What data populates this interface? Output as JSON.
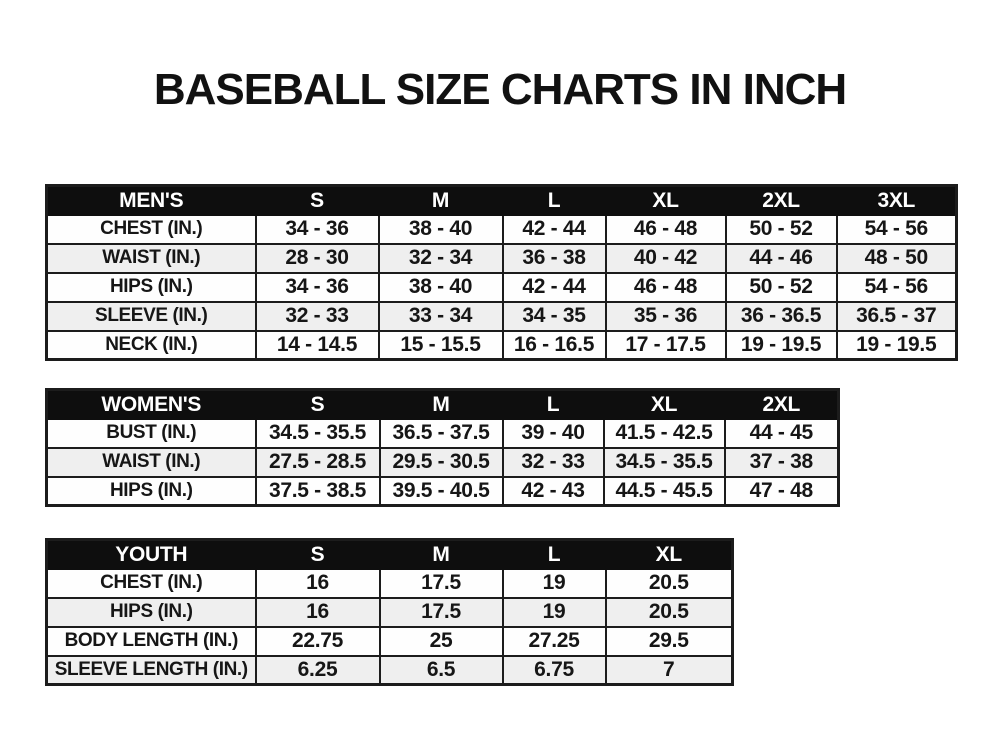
{
  "page": {
    "title": "BASEBALL SIZE CHARTS IN INCH"
  },
  "colors": {
    "header_bg": "#0e0e0e",
    "header_text": "#ffffff",
    "row_stripe": "#efefef",
    "row_white": "#fefefe",
    "border": "#1c1c1c",
    "text": "#161616"
  },
  "tables": [
    {
      "id": "mens",
      "title": "MEN'S",
      "columns": [
        "MEN'S",
        "S",
        "M",
        "L",
        "XL",
        "2XL",
        "3XL"
      ],
      "rows": [
        [
          "CHEST (IN.)",
          "34 - 36",
          "38 - 40",
          "42 - 44",
          "46 - 48",
          "50 - 52",
          "54 - 56"
        ],
        [
          "WAIST (IN.)",
          "28 - 30",
          "32 - 34",
          "36 - 38",
          "40 - 42",
          "44 - 46",
          "48 - 50"
        ],
        [
          "HIPS (IN.)",
          "34 - 36",
          "38 - 40",
          "42 - 44",
          "46 - 48",
          "50 - 52",
          "54 - 56"
        ],
        [
          "SLEEVE (IN.)",
          "32 - 33",
          "33 - 34",
          "34 - 35",
          "35 - 36",
          "36 - 36.5",
          "36.5 - 37"
        ],
        [
          "NECK (IN.)",
          "14 - 14.5",
          "15 - 15.5",
          "16 - 16.5",
          "17 - 17.5",
          "19 - 19.5",
          "19 - 19.5"
        ]
      ]
    },
    {
      "id": "womens",
      "title": "WOMEN'S",
      "columns": [
        "WOMEN'S",
        "S",
        "M",
        "L",
        "XL",
        "2XL"
      ],
      "rows": [
        [
          "BUST (IN.)",
          "34.5 - 35.5",
          "36.5 - 37.5",
          "39 - 40",
          "41.5 - 42.5",
          "44 - 45"
        ],
        [
          "WAIST (IN.)",
          "27.5 - 28.5",
          "29.5 - 30.5",
          "32 - 33",
          "34.5 - 35.5",
          "37 - 38"
        ],
        [
          "HIPS (IN.)",
          "37.5 - 38.5",
          "39.5 - 40.5",
          "42 - 43",
          "44.5 - 45.5",
          "47 - 48"
        ]
      ]
    },
    {
      "id": "youth",
      "title": "YOUTH",
      "columns": [
        "YOUTH",
        "S",
        "M",
        "L",
        "XL"
      ],
      "rows": [
        [
          "CHEST (IN.)",
          "16",
          "17.5",
          "19",
          "20.5"
        ],
        [
          "HIPS (IN.)",
          "16",
          "17.5",
          "19",
          "20.5"
        ],
        [
          "BODY LENGTH (IN.)",
          "22.75",
          "25",
          "27.25",
          "29.5"
        ],
        [
          "SLEEVE LENGTH (IN.)",
          "6.25",
          "6.5",
          "6.75",
          "7"
        ]
      ]
    }
  ]
}
